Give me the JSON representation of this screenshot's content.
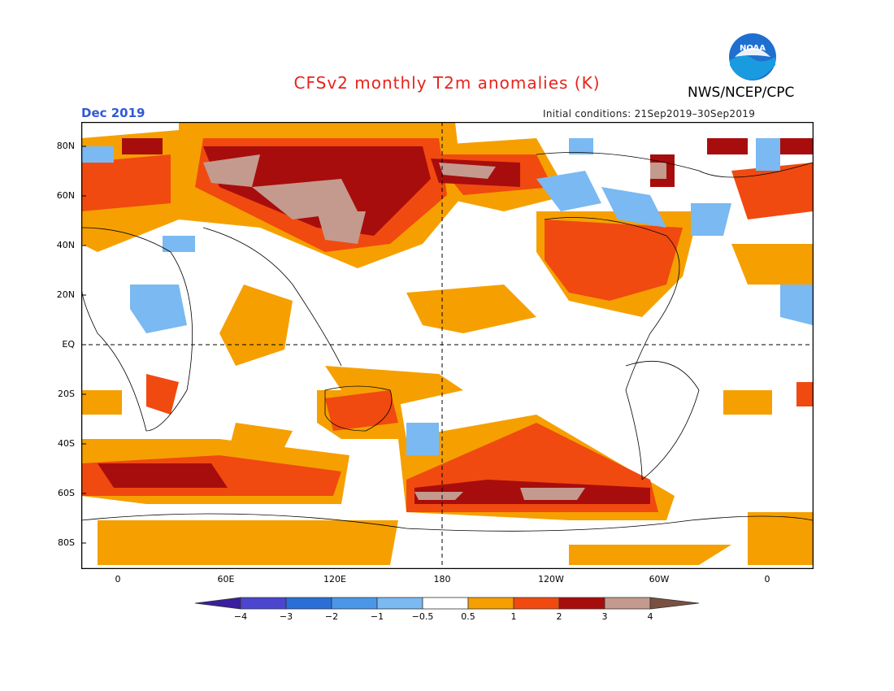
{
  "header": {
    "title": "CFSv2 monthly T2m anomalies (K)",
    "org": "NWS/NCEP/CPC",
    "month": "Dec 2019",
    "initial_conditions": "Initial conditions: 21Sep2019–30Sep2019"
  },
  "logo": {
    "text": "NOAA",
    "icon": "noaa-logo"
  },
  "map": {
    "lat_labels": [
      "80N",
      "60N",
      "40N",
      "20N",
      "EQ",
      "20S",
      "40S",
      "60S",
      "80S"
    ],
    "lon_labels": [
      "0",
      "60E",
      "120E",
      "180",
      "120W",
      "60W",
      "0"
    ]
  },
  "colorbar": {
    "labels": [
      "−4",
      "−3",
      "−2",
      "−1",
      "−0.5",
      "0.5",
      "1",
      "2",
      "3",
      "4"
    ],
    "colors": [
      "#3a1f9e",
      "#4b45cf",
      "#2a6fd6",
      "#4a97e8",
      "#7ab9f2",
      "#ffffff",
      "#f5a000",
      "#f04a10",
      "#a80d0d",
      "#c49a8e",
      "#7a5040"
    ]
  }
}
